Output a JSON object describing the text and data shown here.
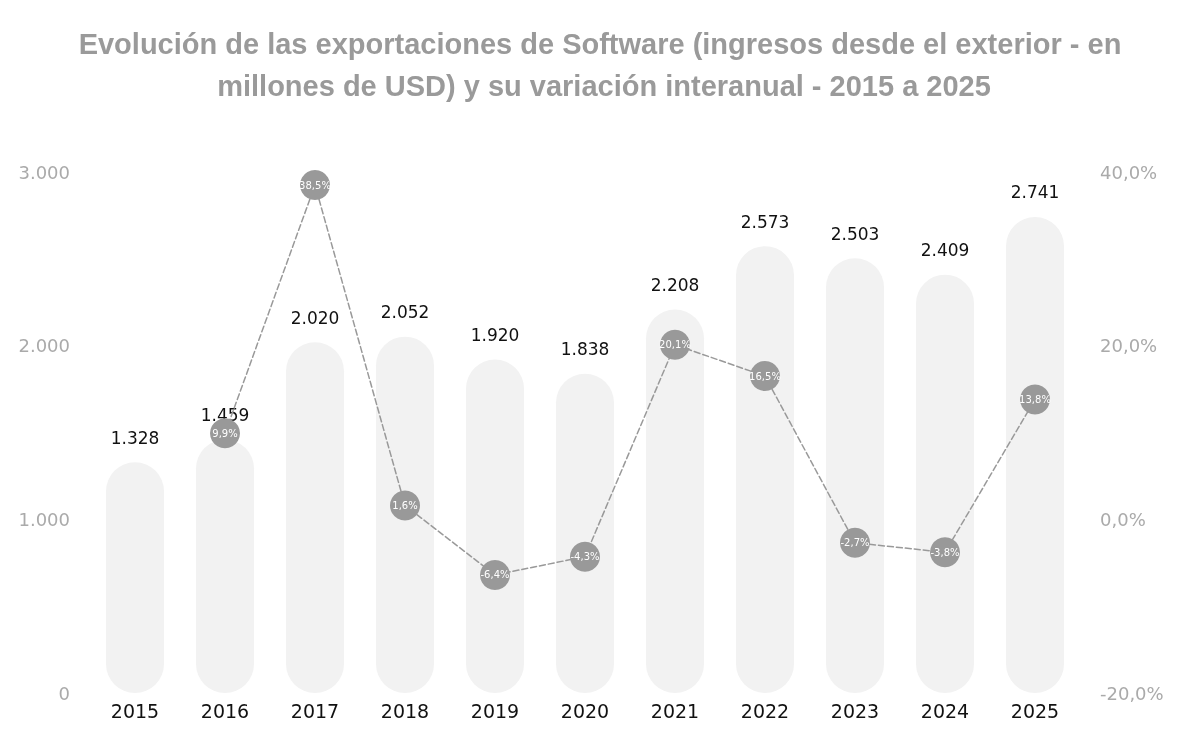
{
  "chart_data": {
    "type": "bar",
    "title": "Evolución de las exportaciones de Software (ingresos desde el exterior - en millones de USD) y su variación interanual - 2015 a 2025",
    "categories": [
      "2015",
      "2016",
      "2017",
      "2018",
      "2019",
      "2020",
      "2021",
      "2022",
      "2023",
      "2024",
      "2025"
    ],
    "series": [
      {
        "color": "#f2f2f2",
        "values": [
          1328,
          1459,
          2020,
          2052,
          1920,
          1838,
          2208,
          2573,
          2503,
          2409,
          2741
        ],
        "value_labels": [
          "1.328",
          "1.459",
          "2.020",
          "2.052",
          "1.920",
          "1.838",
          "2.208",
          "2.573",
          "2.503",
          "2.409",
          "2.741"
        ]
      },
      {
        "type": "line",
        "axis": "y2",
        "color": "#999999",
        "values": [
          null,
          9.9,
          38.5,
          1.6,
          -6.4,
          -4.3,
          20.1,
          16.5,
          -2.7,
          -3.8,
          13.8
        ],
        "value_labels": [
          null,
          "9,9%",
          "38,5%",
          "1,6%",
          "-6,4%",
          "-4,3%",
          "20,1%",
          "16,5%",
          "-2,7%",
          "-3,8%",
          "13,8%"
        ]
      }
    ],
    "ylim": [
      0,
      3000
    ],
    "yticks": [
      {
        "value": 0,
        "label": "0"
      },
      {
        "value": 1000,
        "label": "1.000"
      },
      {
        "value": 2000,
        "label": "2.000"
      },
      {
        "value": 3000,
        "label": "3.000"
      }
    ],
    "y2lim": [
      -20,
      40
    ],
    "y2ticks": [
      {
        "value": -20,
        "label": "-20,0%"
      },
      {
        "value": 0,
        "label": "0,0%"
      },
      {
        "value": 20,
        "label": "20,0%"
      },
      {
        "value": 40,
        "label": "40,0%"
      }
    ],
    "marker": "circle",
    "line_style": "dashed",
    "grid": false
  }
}
